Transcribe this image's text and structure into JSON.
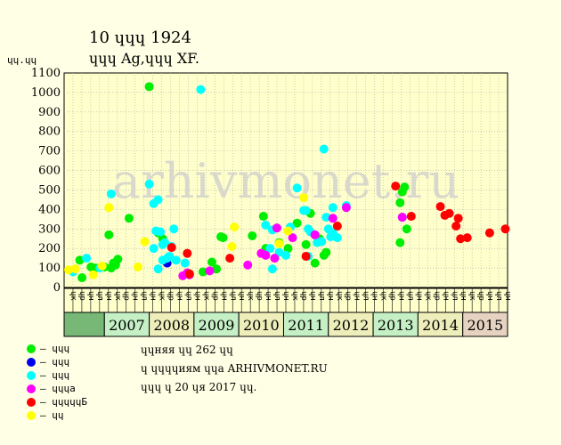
{
  "header": {
    "title_line1": "10 ɥɥɥ 1924",
    "title_line2": "ɥɥɥ Ag,ɥɥɥ XF."
  },
  "info": {
    "line1": "ɥɥняя ɥɥ 262 ɥɥ",
    "line2": "ɥ ɥɥɥɥиям ɥɥа ARHIVMONET.RU",
    "line3": "ɥɥɥ ɥ 20 ɥя 2017 ɥɥ."
  },
  "watermark": "arhivmonet.ru",
  "colors": {
    "plot_bg": "#FFFFCC",
    "year_bg": "#C5F0C5",
    "year_bg_alt": "#EEEEBB",
    "year_2015_bg": "#E6D2C0",
    "edge_teal": "#66D9D9",
    "edge_green": "#77B877"
  },
  "legend": [
    {
      "label": "– ɥɥɥ",
      "color": "#00EE00"
    },
    {
      "label": "– ɥɥɥ",
      "color": "#0000EE"
    },
    {
      "label": "– ɥɥɥ",
      "color": "#00FFFF"
    },
    {
      "label": "– ɥɥɥа",
      "color": "#FF00FF"
    },
    {
      "label": "– ɥɥɥɥɥБ",
      "color": "#FF0000"
    },
    {
      "label": "– ɥɥ",
      "color": "#FFFF00"
    }
  ],
  "chart_data": {
    "type": "scatter",
    "ylabel": "ɥɥ.ɥɥ",
    "ylim": [
      0,
      1100
    ],
    "yticks": [
      0,
      100,
      200,
      300,
      400,
      500,
      600,
      700,
      800,
      900,
      1000,
      1100
    ],
    "grid": true,
    "xlim": [
      2006.1,
      2016.0
    ],
    "x_labels": [
      "ɥк",
      "ɥр",
      "ɥн",
      "ɥл",
      "ɥн",
      "ɥк",
      "ɥр",
      "ɥн",
      "ɥл",
      "ɥн",
      "ɥк",
      "ɥр",
      "ɥн",
      "ɥл",
      "ɥн",
      "ɥк",
      "ɥр",
      "ɥн",
      "ɥл",
      "ɥн",
      "ɥк",
      "ɥр",
      "ɥн",
      "ɥл",
      "ɥн",
      "ɥк",
      "ɥр",
      "ɥн",
      "ɥл",
      "ɥн",
      "ɥк",
      "ɥр",
      "ɥн",
      "ɥл",
      "ɥн",
      "ɥк",
      "ɥр",
      "ɥн",
      "ɥл",
      "ɥн",
      "ɥк",
      "ɥр",
      "ɥн",
      "ɥл",
      "ɥн",
      "ɥк",
      "ɥр",
      "ɥн",
      "ɥл",
      "ɥн"
    ],
    "years": [
      "2007",
      "2008",
      "2009",
      "2010",
      "2011",
      "2012",
      "2013",
      "2014",
      "2015"
    ],
    "series": [
      {
        "color": "#00EE00",
        "points": [
          [
            2006.45,
            140
          ],
          [
            2006.5,
            50
          ],
          [
            2006.7,
            105
          ],
          [
            2006.8,
            100
          ],
          [
            2007.0,
            105
          ],
          [
            2007.1,
            270
          ],
          [
            2007.15,
            100
          ],
          [
            2007.2,
            125
          ],
          [
            2007.3,
            145
          ],
          [
            2007.55,
            355
          ],
          [
            2007.25,
            115
          ],
          [
            2008.0,
            1030
          ],
          [
            2008.2,
            280
          ],
          [
            2008.3,
            250
          ],
          [
            2009.2,
            80
          ],
          [
            2009.4,
            130
          ],
          [
            2009.5,
            95
          ],
          [
            2009.6,
            260
          ],
          [
            2009.65,
            255
          ],
          [
            2010.3,
            265
          ],
          [
            2010.55,
            365
          ],
          [
            2010.6,
            200
          ],
          [
            2010.9,
            230
          ],
          [
            2011.1,
            200
          ],
          [
            2011.3,
            330
          ],
          [
            2011.5,
            220
          ],
          [
            2011.6,
            380
          ],
          [
            2011.7,
            125
          ],
          [
            2011.8,
            250
          ],
          [
            2011.9,
            165
          ],
          [
            2011.95,
            180
          ],
          [
            2013.65,
            490
          ],
          [
            2013.7,
            515
          ],
          [
            2013.6,
            435
          ],
          [
            2013.75,
            300
          ],
          [
            2013.6,
            230
          ]
        ]
      },
      {
        "color": "#0000EE",
        "points": [
          [
            2008.4,
            125
          ],
          [
            2013.65,
            360
          ]
        ]
      },
      {
        "color": "#00FFFF",
        "points": [
          [
            2006.3,
            80
          ],
          [
            2006.6,
            150
          ],
          [
            2006.9,
            100
          ],
          [
            2007.15,
            480
          ],
          [
            2008.0,
            530
          ],
          [
            2008.1,
            430
          ],
          [
            2008.15,
            290
          ],
          [
            2008.2,
            450
          ],
          [
            2008.25,
            285
          ],
          [
            2008.3,
            140
          ],
          [
            2008.35,
            230
          ],
          [
            2008.45,
            160
          ],
          [
            2008.5,
            210
          ],
          [
            2008.55,
            300
          ],
          [
            2008.2,
            95
          ],
          [
            2008.4,
            150
          ],
          [
            2008.6,
            140
          ],
          [
            2008.8,
            125
          ],
          [
            2008.1,
            200
          ],
          [
            2008.3,
            220
          ],
          [
            2009.15,
            1015
          ],
          [
            2010.6,
            320
          ],
          [
            2010.7,
            200
          ],
          [
            2010.75,
            295
          ],
          [
            2010.75,
            95
          ],
          [
            2010.9,
            180
          ],
          [
            2011.05,
            165
          ],
          [
            2011.15,
            310
          ],
          [
            2011.3,
            510
          ],
          [
            2011.45,
            395
          ],
          [
            2011.5,
            395
          ],
          [
            2011.55,
            300
          ],
          [
            2011.55,
            160
          ],
          [
            2011.6,
            285
          ],
          [
            2011.7,
            270
          ],
          [
            2011.75,
            230
          ],
          [
            2011.85,
            235
          ],
          [
            2011.9,
            710
          ],
          [
            2011.95,
            360
          ],
          [
            2012.05,
            260
          ],
          [
            2012.1,
            410
          ],
          [
            2012.0,
            300
          ],
          [
            2012.2,
            255
          ],
          [
            2012.1,
            280
          ],
          [
            2012.4,
            420
          ]
        ]
      },
      {
        "color": "#FF00FF",
        "points": [
          [
            2008.75,
            60
          ],
          [
            2008.85,
            75
          ],
          [
            2008.9,
            65
          ],
          [
            2009.35,
            85
          ],
          [
            2010.2,
            115
          ],
          [
            2010.5,
            175
          ],
          [
            2010.6,
            165
          ],
          [
            2010.8,
            150
          ],
          [
            2010.85,
            305
          ],
          [
            2011.2,
            255
          ],
          [
            2011.7,
            270
          ],
          [
            2012.1,
            355
          ],
          [
            2012.4,
            410
          ],
          [
            2013.65,
            360
          ]
        ]
      },
      {
        "color": "#FF0000",
        "points": [
          [
            2008.5,
            205
          ],
          [
            2008.85,
            175
          ],
          [
            2008.9,
            70
          ],
          [
            2009.8,
            150
          ],
          [
            2011.5,
            160
          ],
          [
            2012.2,
            315
          ],
          [
            2013.5,
            520
          ],
          [
            2013.85,
            365
          ],
          [
            2014.5,
            415
          ],
          [
            2014.6,
            370
          ],
          [
            2014.7,
            380
          ],
          [
            2014.85,
            315
          ],
          [
            2014.9,
            355
          ],
          [
            2014.95,
            250
          ],
          [
            2015.1,
            255
          ],
          [
            2015.6,
            280
          ],
          [
            2015.95,
            300
          ]
        ]
      },
      {
        "color": "#FFFF00",
        "points": [
          [
            2006.2,
            90
          ],
          [
            2006.35,
            95
          ],
          [
            2006.75,
            65
          ],
          [
            2006.95,
            110
          ],
          [
            2007.1,
            410
          ],
          [
            2007.75,
            105
          ],
          [
            2007.9,
            235
          ],
          [
            2009.85,
            210
          ],
          [
            2009.9,
            310
          ],
          [
            2010.9,
            225
          ],
          [
            2011.1,
            290
          ],
          [
            2011.45,
            460
          ]
        ]
      }
    ]
  }
}
